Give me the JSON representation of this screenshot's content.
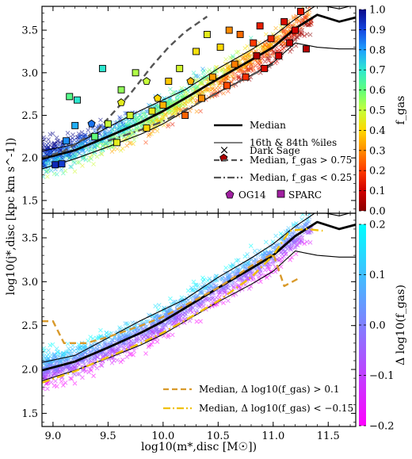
{
  "chart_data": [
    {
      "type": "scatter",
      "panel": "top",
      "xlabel": "",
      "ylabel": "log10(j*,disc [kpc km s^-1])",
      "xlim": [
        8.9,
        11.75
      ],
      "ylim": [
        1.35,
        3.78
      ],
      "yticks": [
        "1.5",
        "2.0",
        "2.5",
        "3.0",
        "3.5"
      ],
      "colorbar": {
        "label": "f_gas",
        "ticks": [
          "0.0",
          "0.1",
          "0.2",
          "0.3",
          "0.4",
          "0.5",
          "0.6",
          "0.7",
          "0.8",
          "0.9",
          "1.0"
        ],
        "range": [
          0,
          1
        ]
      },
      "legend": {
        "position": "lower-right",
        "entries": [
          "Dark Sage",
          "Median",
          "16th & 84th %iles",
          "Median, f_gas > 0.75",
          "Median, f_gas < 0.25",
          "OG14",
          "SPARC"
        ]
      },
      "series": [
        {
          "name": "Median",
          "style": "thick-solid",
          "x": [
            8.9,
            9.2,
            9.5,
            9.8,
            10.0,
            10.2,
            10.5,
            10.8,
            11.0,
            11.2,
            11.4,
            11.6,
            11.75
          ],
          "y": [
            1.99,
            2.09,
            2.25,
            2.42,
            2.55,
            2.7,
            2.93,
            3.15,
            3.3,
            3.52,
            3.68,
            3.6,
            3.65
          ]
        },
        {
          "name": "16th & 84th %iles",
          "style": "thin-solid",
          "x": [
            8.9,
            9.2,
            9.5,
            9.8,
            10.0,
            10.2,
            10.5,
            10.8,
            11.0,
            11.2,
            11.4,
            11.6,
            11.75
          ],
          "y": [
            2.08,
            2.16,
            2.36,
            2.56,
            2.68,
            2.8,
            3.05,
            3.27,
            3.43,
            3.63,
            3.8,
            3.75,
            3.8
          ]
        },
        {
          "name": "16th & 84th %iles (lower)",
          "style": "thin-solid",
          "x": [
            8.9,
            9.2,
            9.5,
            9.8,
            10.0,
            10.2,
            10.5,
            10.8,
            11.0,
            11.2,
            11.4,
            11.6,
            11.75
          ],
          "y": [
            1.87,
            1.99,
            2.13,
            2.28,
            2.4,
            2.55,
            2.77,
            2.97,
            3.12,
            3.35,
            3.3,
            3.28,
            3.28
          ]
        },
        {
          "name": "Median, f_gas > 0.75",
          "style": "dashed",
          "x": [
            8.9,
            9.1,
            9.4,
            9.7,
            9.9,
            10.05,
            10.2,
            10.4
          ],
          "y": [
            2.0,
            2.08,
            2.32,
            2.75,
            3.08,
            3.3,
            3.48,
            3.66
          ]
        },
        {
          "name": "Median, f_gas < 0.25",
          "style": "dash-dot",
          "x": [
            9.5,
            9.8,
            10.0,
            10.2,
            10.5,
            10.8,
            11.0
          ],
          "y": [
            2.2,
            2.33,
            2.43,
            2.56,
            2.77,
            2.97,
            3.1
          ]
        }
      ],
      "sparc": [
        {
          "x": 9.02,
          "y": 1.92,
          "f": 0.95
        },
        {
          "x": 9.08,
          "y": 1.93,
          "f": 0.92
        },
        {
          "x": 9.15,
          "y": 2.72,
          "f": 0.62
        },
        {
          "x": 9.22,
          "y": 2.68,
          "f": 0.7
        },
        {
          "x": 9.12,
          "y": 2.2,
          "f": 0.82
        },
        {
          "x": 9.2,
          "y": 2.38,
          "f": 0.78
        },
        {
          "x": 9.38,
          "y": 2.25,
          "f": 0.6
        },
        {
          "x": 9.45,
          "y": 3.05,
          "f": 0.7
        },
        {
          "x": 9.5,
          "y": 2.4,
          "f": 0.5
        },
        {
          "x": 9.58,
          "y": 2.18,
          "f": 0.45
        },
        {
          "x": 9.62,
          "y": 2.8,
          "f": 0.55
        },
        {
          "x": 9.7,
          "y": 2.5,
          "f": 0.48
        },
        {
          "x": 9.75,
          "y": 3.0,
          "f": 0.52
        },
        {
          "x": 9.85,
          "y": 2.35,
          "f": 0.4
        },
        {
          "x": 9.9,
          "y": 2.55,
          "f": 0.44
        },
        {
          "x": 10.0,
          "y": 2.62,
          "f": 0.35
        },
        {
          "x": 10.05,
          "y": 2.9,
          "f": 0.38
        },
        {
          "x": 10.15,
          "y": 3.05,
          "f": 0.48
        },
        {
          "x": 10.2,
          "y": 2.5,
          "f": 0.25
        },
        {
          "x": 10.3,
          "y": 3.25,
          "f": 0.42
        },
        {
          "x": 10.35,
          "y": 2.7,
          "f": 0.3
        },
        {
          "x": 10.45,
          "y": 2.95,
          "f": 0.32
        },
        {
          "x": 10.52,
          "y": 3.3,
          "f": 0.4
        },
        {
          "x": 10.58,
          "y": 2.85,
          "f": 0.22
        },
        {
          "x": 10.65,
          "y": 3.1,
          "f": 0.28
        },
        {
          "x": 10.7,
          "y": 3.45,
          "f": 0.26
        },
        {
          "x": 10.75,
          "y": 2.95,
          "f": 0.18
        },
        {
          "x": 10.82,
          "y": 3.35,
          "f": 0.2
        },
        {
          "x": 10.88,
          "y": 3.55,
          "f": 0.15
        },
        {
          "x": 10.92,
          "y": 3.05,
          "f": 0.12
        },
        {
          "x": 10.98,
          "y": 3.4,
          "f": 0.16
        },
        {
          "x": 11.05,
          "y": 3.2,
          "f": 0.1
        },
        {
          "x": 11.1,
          "y": 3.6,
          "f": 0.12
        },
        {
          "x": 11.15,
          "y": 3.35,
          "f": 0.08
        },
        {
          "x": 11.2,
          "y": 3.5,
          "f": 0.1
        },
        {
          "x": 11.25,
          "y": 3.72,
          "f": 0.14
        },
        {
          "x": 10.4,
          "y": 3.45,
          "f": 0.45
        },
        {
          "x": 10.6,
          "y": 3.5,
          "f": 0.3
        },
        {
          "x": 10.85,
          "y": 3.2,
          "f": 0.05
        },
        {
          "x": 11.3,
          "y": 3.28,
          "f": 0.06
        }
      ],
      "og14": [
        {
          "x": 9.35,
          "y": 2.4,
          "f": 0.85
        },
        {
          "x": 9.62,
          "y": 2.65,
          "f": 0.45
        },
        {
          "x": 9.85,
          "y": 2.9,
          "f": 0.5
        },
        {
          "x": 10.25,
          "y": 2.9,
          "f": 0.35
        },
        {
          "x": 10.55,
          "y": 2.0,
          "f": 0.05
        },
        {
          "x": 9.95,
          "y": 2.7,
          "f": 0.4
        }
      ]
    },
    {
      "type": "scatter",
      "panel": "bottom",
      "xlabel": "log10(m*,disc [M☉])",
      "ylabel": "log10(j*,disc [kpc km s^-1])",
      "xlim": [
        8.9,
        11.75
      ],
      "ylim": [
        1.35,
        3.78
      ],
      "xticks": [
        "9.0",
        "9.5",
        "10.0",
        "10.5",
        "11.0",
        "11.5"
      ],
      "yticks": [
        "1.5",
        "2.0",
        "2.5",
        "3.0",
        "3.5"
      ],
      "colorbar": {
        "label": "Δ log10(f_gas)",
        "ticks": [
          "−0.2",
          "−0.1",
          "0.0",
          "0.1",
          "0.2"
        ],
        "range": [
          -0.2,
          0.2
        ]
      },
      "legend": {
        "position": "lower-right",
        "entries": [
          "Median, Δ log10(f_gas) > 0.1",
          "Median, Δ log10(f_gas) < −0.15"
        ]
      },
      "series": [
        {
          "name": "Median",
          "style": "thick-solid",
          "x": [
            8.9,
            9.2,
            9.5,
            9.8,
            10.0,
            10.2,
            10.5,
            10.8,
            11.0,
            11.2,
            11.4,
            11.6,
            11.75
          ],
          "y": [
            1.99,
            2.09,
            2.25,
            2.42,
            2.55,
            2.7,
            2.93,
            3.15,
            3.3,
            3.52,
            3.68,
            3.6,
            3.65
          ]
        },
        {
          "name": "16th & 84th %iles",
          "style": "thin-solid",
          "x": [
            8.9,
            9.2,
            9.5,
            9.8,
            10.0,
            10.2,
            10.5,
            10.8,
            11.0,
            11.2,
            11.4,
            11.6,
            11.75
          ],
          "y": [
            2.08,
            2.16,
            2.36,
            2.56,
            2.68,
            2.8,
            3.05,
            3.27,
            3.43,
            3.63,
            3.8,
            3.75,
            3.8
          ]
        },
        {
          "name": "16th & 84th %iles (lower)",
          "style": "thin-solid",
          "x": [
            8.9,
            9.2,
            9.5,
            9.8,
            10.0,
            10.2,
            10.5,
            10.8,
            11.0,
            11.2,
            11.4,
            11.6,
            11.75
          ],
          "y": [
            1.87,
            1.99,
            2.13,
            2.28,
            2.4,
            2.55,
            2.77,
            2.97,
            3.12,
            3.35,
            3.3,
            3.28,
            3.28
          ]
        },
        {
          "name": "Median, Δ log10(f_gas) > 0.1",
          "style": "dashed",
          "x": [
            8.9,
            9.0,
            9.1,
            9.3,
            9.5,
            9.8,
            10.0,
            10.2,
            10.5,
            10.8,
            11.0,
            11.1,
            11.25
          ],
          "y": [
            2.55,
            2.55,
            2.3,
            2.3,
            2.37,
            2.5,
            2.6,
            2.73,
            2.93,
            3.18,
            3.32,
            2.95,
            3.05
          ]
        },
        {
          "name": "Median, Δ log10(f_gas) < −0.15",
          "style": "dash-dot",
          "x": [
            8.9,
            9.2,
            9.5,
            9.8,
            10.0,
            10.2,
            10.5,
            10.8,
            11.0,
            11.15,
            11.3,
            11.45
          ],
          "y": [
            1.85,
            1.98,
            2.14,
            2.3,
            2.42,
            2.56,
            2.78,
            3.05,
            3.3,
            3.58,
            3.6,
            3.58
          ]
        }
      ]
    }
  ]
}
